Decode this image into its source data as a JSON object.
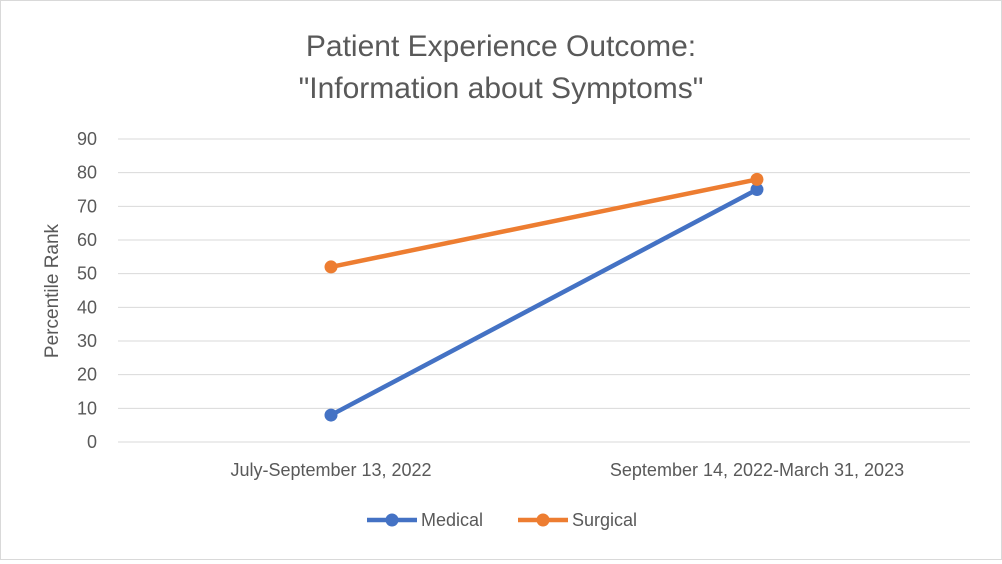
{
  "chart_data": {
    "type": "line",
    "title_lines": [
      "Patient Experience Outcome:",
      "\"Information about Symptoms\""
    ],
    "xlabel": "",
    "ylabel": "Percentile Rank",
    "categories": [
      "July-September 13, 2022",
      "September 14, 2022-March 31, 2023"
    ],
    "y_ticks": [
      "0",
      "10",
      "20",
      "30",
      "40",
      "50",
      "60",
      "70",
      "80",
      "90"
    ],
    "ylim": [
      0,
      90
    ],
    "grid": true,
    "legend_position": "bottom",
    "series": [
      {
        "name": "Medical",
        "values": [
          8,
          75
        ],
        "color": "#4472c4"
      },
      {
        "name": "Surgical",
        "values": [
          52,
          78
        ],
        "color": "#ed7d31"
      }
    ]
  }
}
